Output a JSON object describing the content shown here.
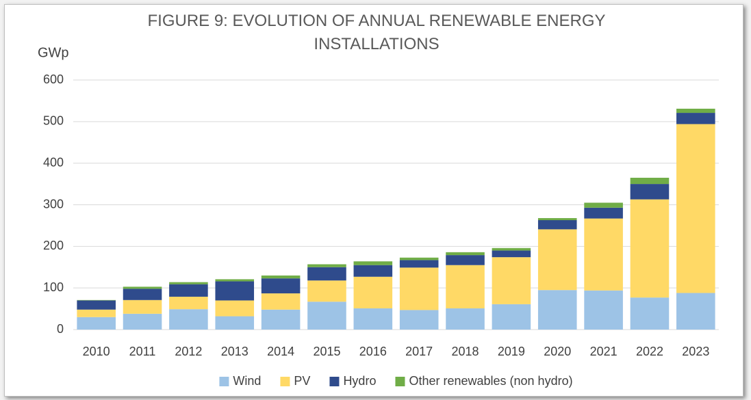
{
  "chart_data": {
    "type": "stacked_bar",
    "title": "FIGURE 9: EVOLUTION OF ANNUAL RENEWABLE ENERGY INSTALLATIONS",
    "y_label": "GWp",
    "categories": [
      "2010",
      "2011",
      "2012",
      "2013",
      "2014",
      "2015",
      "2016",
      "2017",
      "2018",
      "2019",
      "2020",
      "2021",
      "2022",
      "2023"
    ],
    "series": [
      {
        "name": "Wind",
        "color": "#9dc3e6",
        "values": [
          30,
          38,
          49,
          32,
          48,
          67,
          51,
          47,
          51,
          61,
          95,
          94,
          77,
          88
        ]
      },
      {
        "name": "PV",
        "color": "#ffd966",
        "values": [
          18,
          33,
          30,
          38,
          39,
          51,
          76,
          102,
          104,
          113,
          146,
          173,
          236,
          406
        ]
      },
      {
        "name": "Hydro",
        "color": "#2f4b8c",
        "values": [
          22,
          27,
          30,
          46,
          36,
          32,
          28,
          18,
          24,
          16,
          22,
          26,
          37,
          27
        ]
      },
      {
        "name": "Other renewables (non hydro)",
        "color": "#70ad47",
        "values": [
          1,
          5,
          5,
          5,
          7,
          7,
          9,
          6,
          7,
          6,
          5,
          12,
          15,
          10
        ]
      }
    ],
    "ylim": [
      0,
      600
    ],
    "yticks": [
      0,
      100,
      200,
      300,
      400,
      500,
      600
    ],
    "grid": true,
    "legend": "bottom"
  }
}
